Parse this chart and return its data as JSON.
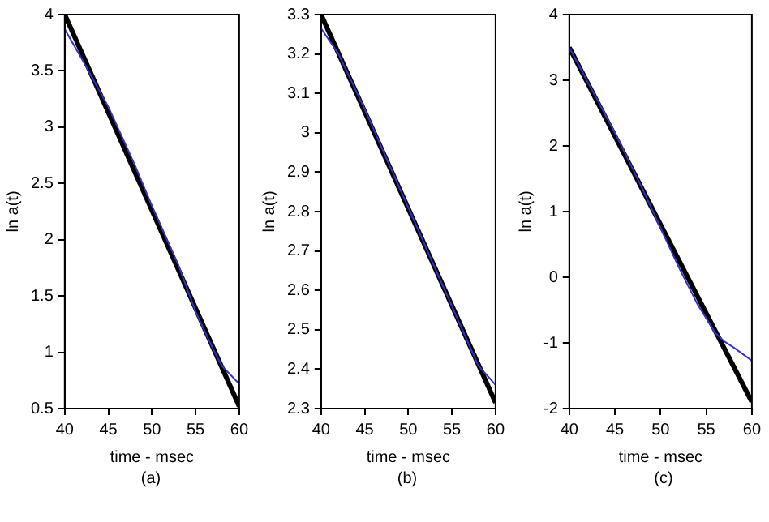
{
  "chart_data": [
    {
      "type": "line",
      "xlabel": "time - msec",
      "ylabel": "ln a(t)",
      "annotations": [
        "(a)"
      ],
      "xlim": [
        40,
        60
      ],
      "ylim": [
        0.5,
        4
      ],
      "xticks": [
        40,
        45,
        50,
        55,
        60
      ],
      "yticks": [
        0.5,
        1,
        1.5,
        2,
        2.5,
        3,
        3.5,
        4
      ],
      "grid": false,
      "legend": false,
      "marker": "none",
      "line_style": "solid",
      "series": [
        {
          "color": "#3333cc",
          "x": [
            40,
            42,
            45,
            48,
            50,
            53,
            55,
            57,
            58,
            60
          ],
          "values": [
            3.87,
            3.6,
            3.18,
            2.67,
            2.3,
            1.78,
            1.36,
            1.03,
            0.88,
            0.72
          ]
        },
        {
          "color": "#000000",
          "x": [
            40,
            60
          ],
          "values": [
            4.0,
            0.52
          ]
        }
      ]
    },
    {
      "type": "line",
      "xlabel": "time - msec",
      "ylabel": "ln a(t)",
      "annotations": [
        "(b)"
      ],
      "xlim": [
        40,
        60
      ],
      "ylim": [
        2.3,
        3.3
      ],
      "xticks": [
        40,
        45,
        50,
        55,
        60
      ],
      "yticks": [
        2.3,
        2.4,
        2.5,
        2.6,
        2.7,
        2.8,
        2.9,
        3,
        3.1,
        3.2,
        3.3
      ],
      "grid": false,
      "legend": false,
      "marker": "none",
      "line_style": "solid",
      "series": [
        {
          "color": "#3333cc",
          "x": [
            40,
            42,
            45,
            48,
            50,
            53,
            55,
            57,
            58,
            60
          ],
          "values": [
            3.265,
            3.2,
            3.06,
            2.91,
            2.81,
            2.66,
            2.56,
            2.46,
            2.41,
            2.36
          ]
        },
        {
          "color": "#000000",
          "x": [
            40,
            60
          ],
          "values": [
            3.3,
            2.315
          ]
        }
      ]
    },
    {
      "type": "line",
      "xlabel": "time - msec",
      "ylabel": "ln a(t)",
      "annotations": [
        "(c)"
      ],
      "xlim": [
        40,
        60
      ],
      "ylim": [
        -2,
        4
      ],
      "xticks": [
        40,
        45,
        50,
        55,
        60
      ],
      "yticks": [
        -2,
        -1,
        0,
        1,
        2,
        3,
        4
      ],
      "grid": false,
      "legend": false,
      "marker": "none",
      "line_style": "solid",
      "series": [
        {
          "color": "#3333cc",
          "x": [
            40,
            42,
            45,
            48,
            50,
            52,
            54,
            56,
            57,
            58,
            60
          ],
          "values": [
            3.5,
            2.98,
            2.2,
            1.35,
            0.75,
            0.15,
            -0.4,
            -0.85,
            -0.98,
            -1.07,
            -1.27
          ]
        },
        {
          "color": "#000000",
          "x": [
            40,
            60
          ],
          "values": [
            3.5,
            -1.9
          ]
        }
      ]
    }
  ]
}
